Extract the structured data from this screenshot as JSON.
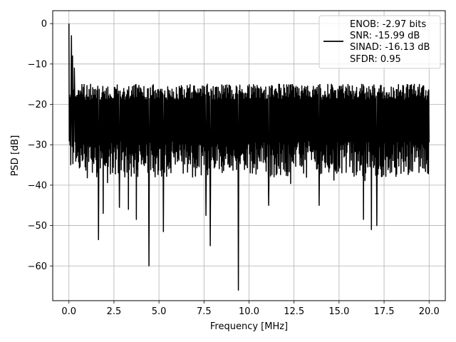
{
  "chart_data": {
    "type": "line",
    "xlabel": "Frequency [MHz]",
    "ylabel": "PSD [dB]",
    "xlim": [
      -0.9,
      20.9
    ],
    "ylim": [
      -68.6,
      3.2
    ],
    "xticks": [
      0.0,
      2.5,
      5.0,
      7.5,
      10.0,
      12.5,
      15.0,
      17.5,
      20.0
    ],
    "xtick_labels": [
      "0.0",
      "2.5",
      "5.0",
      "7.5",
      "10.0",
      "12.5",
      "15.0",
      "17.5",
      "20.0"
    ],
    "yticks": [
      0,
      -10,
      -20,
      -30,
      -40,
      -50,
      -60
    ],
    "ytick_labels": [
      "0",
      "−10",
      "−20",
      "−30",
      "−40",
      "−50",
      "−60"
    ],
    "grid": true,
    "legend_position": "top-right",
    "legend": {
      "lines": [
        "ENOB: -2.97 bits",
        "SNR: -15.99 dB",
        "SINAD: -16.13 dB",
        "SFDR: 0.95"
      ]
    },
    "series": [
      {
        "color": "#000000",
        "x_start": 0.0,
        "x_end": 20.0,
        "points": 1000,
        "noise_floor_mean": -25,
        "noise_upper_envelope": -15,
        "noise_lower_typical": -38,
        "peaks": [
          {
            "x": 0.0,
            "y": 0.0
          },
          {
            "x": 0.15,
            "y": -3
          },
          {
            "x": 0.2,
            "y": -8
          },
          {
            "x": 0.3,
            "y": -11
          }
        ],
        "dips": [
          {
            "x": 1.65,
            "y": -53.5
          },
          {
            "x": 1.9,
            "y": -47
          },
          {
            "x": 2.8,
            "y": -45.5
          },
          {
            "x": 3.3,
            "y": -46
          },
          {
            "x": 3.75,
            "y": -48.5
          },
          {
            "x": 4.45,
            "y": -60
          },
          {
            "x": 5.25,
            "y": -51.5
          },
          {
            "x": 7.6,
            "y": -47.5
          },
          {
            "x": 7.85,
            "y": -55
          },
          {
            "x": 9.4,
            "y": -66
          },
          {
            "x": 11.1,
            "y": -45
          },
          {
            "x": 13.9,
            "y": -45
          },
          {
            "x": 16.35,
            "y": -48.5
          },
          {
            "x": 16.8,
            "y": -51
          },
          {
            "x": 17.1,
            "y": -50
          }
        ]
      }
    ]
  }
}
